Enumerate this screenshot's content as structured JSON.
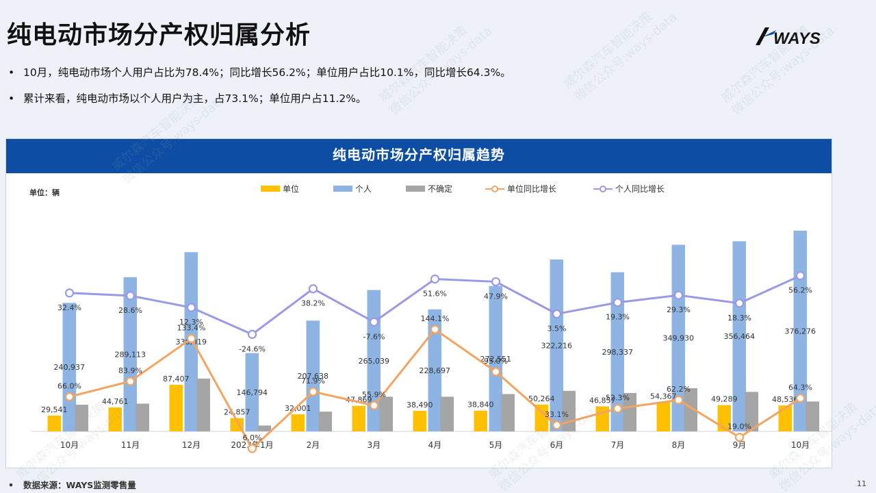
{
  "page": {
    "title": "纯电动市场分产权归属分析",
    "logo_text": "WAYS",
    "bullets": [
      "10月，纯电动市场个人用户占比为78.4%；同比增长56.2%；单位用户占比10.1%，同比增长64.3%。",
      "累计来看，纯电动市场以个人用户为主，占73.1%；单位用户占11.2%。"
    ],
    "bullet_symbol": "•",
    "source": "数据来源：WAYS监测零售量",
    "page_number": "11",
    "watermark_lines": [
      "威尔森汽车智能决策",
      "微信公众号:ways-data"
    ]
  },
  "chart_data": {
    "type": "bar",
    "title": "纯电动市场分产权归属趋势",
    "unit_label": "单位：辆",
    "categories": [
      "10月",
      "11月",
      "12月",
      "2023年1月",
      "2月",
      "3月",
      "4月",
      "5月",
      "6月",
      "7月",
      "8月",
      "9月",
      "10月"
    ],
    "series": [
      {
        "name": "单位",
        "kind": "bar",
        "color": "#ffc000",
        "values": [
          29541,
          44761,
          87407,
          24857,
          32001,
          47869,
          38490,
          38840,
          50264,
          46857,
          54367,
          49289,
          48536
        ],
        "labels": [
          "29,541",
          "44,761",
          "87,407",
          "24,857",
          "32,001",
          "47,869",
          "38,490",
          "38,840",
          "50,264",
          "46,857",
          "54,367",
          "49,289",
          "48,536"
        ]
      },
      {
        "name": "个人",
        "kind": "bar",
        "color": "#8eb4e3",
        "values": [
          240937,
          289113,
          336019,
          146794,
          207638,
          265039,
          228697,
          272551,
          322216,
          298337,
          349930,
          356464,
          376276
        ],
        "labels": [
          "240,937",
          "289,113",
          "336,019",
          "146,794",
          "207,638",
          "265,039",
          "228,697",
          "272,551",
          "322,216",
          "298,337",
          "349,930",
          "356,464",
          "376,276"
        ]
      },
      {
        "name": "不确定",
        "kind": "bar",
        "color": "#a5a5a5",
        "values": [
          50000,
          52000,
          99000,
          11000,
          37000,
          65000,
          65000,
          70000,
          76000,
          72000,
          81000,
          74000,
          56000
        ],
        "labels": []
      },
      {
        "name": "单位同比增长",
        "kind": "line",
        "color": "#f4a460",
        "values": [
          66.0,
          83.9,
          133.4,
          6.0,
          71.9,
          55.9,
          144.1,
          95.0,
          33.1,
          52.3,
          62.2,
          19.0,
          64.3
        ],
        "labels": [
          "66.0%",
          "83.9%",
          "133.4%",
          "6.0%",
          "71.9%",
          "55.9%",
          "144.1%",
          "95.0%",
          "33.1%",
          "52.3%",
          "62.2%",
          "19.0%",
          "64.3%"
        ]
      },
      {
        "name": "个人同比增长",
        "kind": "line",
        "color": "#9999e6",
        "values": [
          32.4,
          28.6,
          12.3,
          -24.6,
          38.2,
          -7.6,
          51.6,
          47.9,
          3.5,
          19.3,
          29.3,
          18.3,
          56.2
        ],
        "labels": [
          "32.4%",
          "28.6%",
          "12.3%",
          "-24.6%",
          "38.2%",
          "-7.6%",
          "51.6%",
          "47.9%",
          "3.5%",
          "19.3%",
          "29.3%",
          "18.3%",
          "56.2%"
        ]
      }
    ],
    "bar_ylim": [
      0,
      380000
    ],
    "legend_position": "top",
    "grid": false
  }
}
